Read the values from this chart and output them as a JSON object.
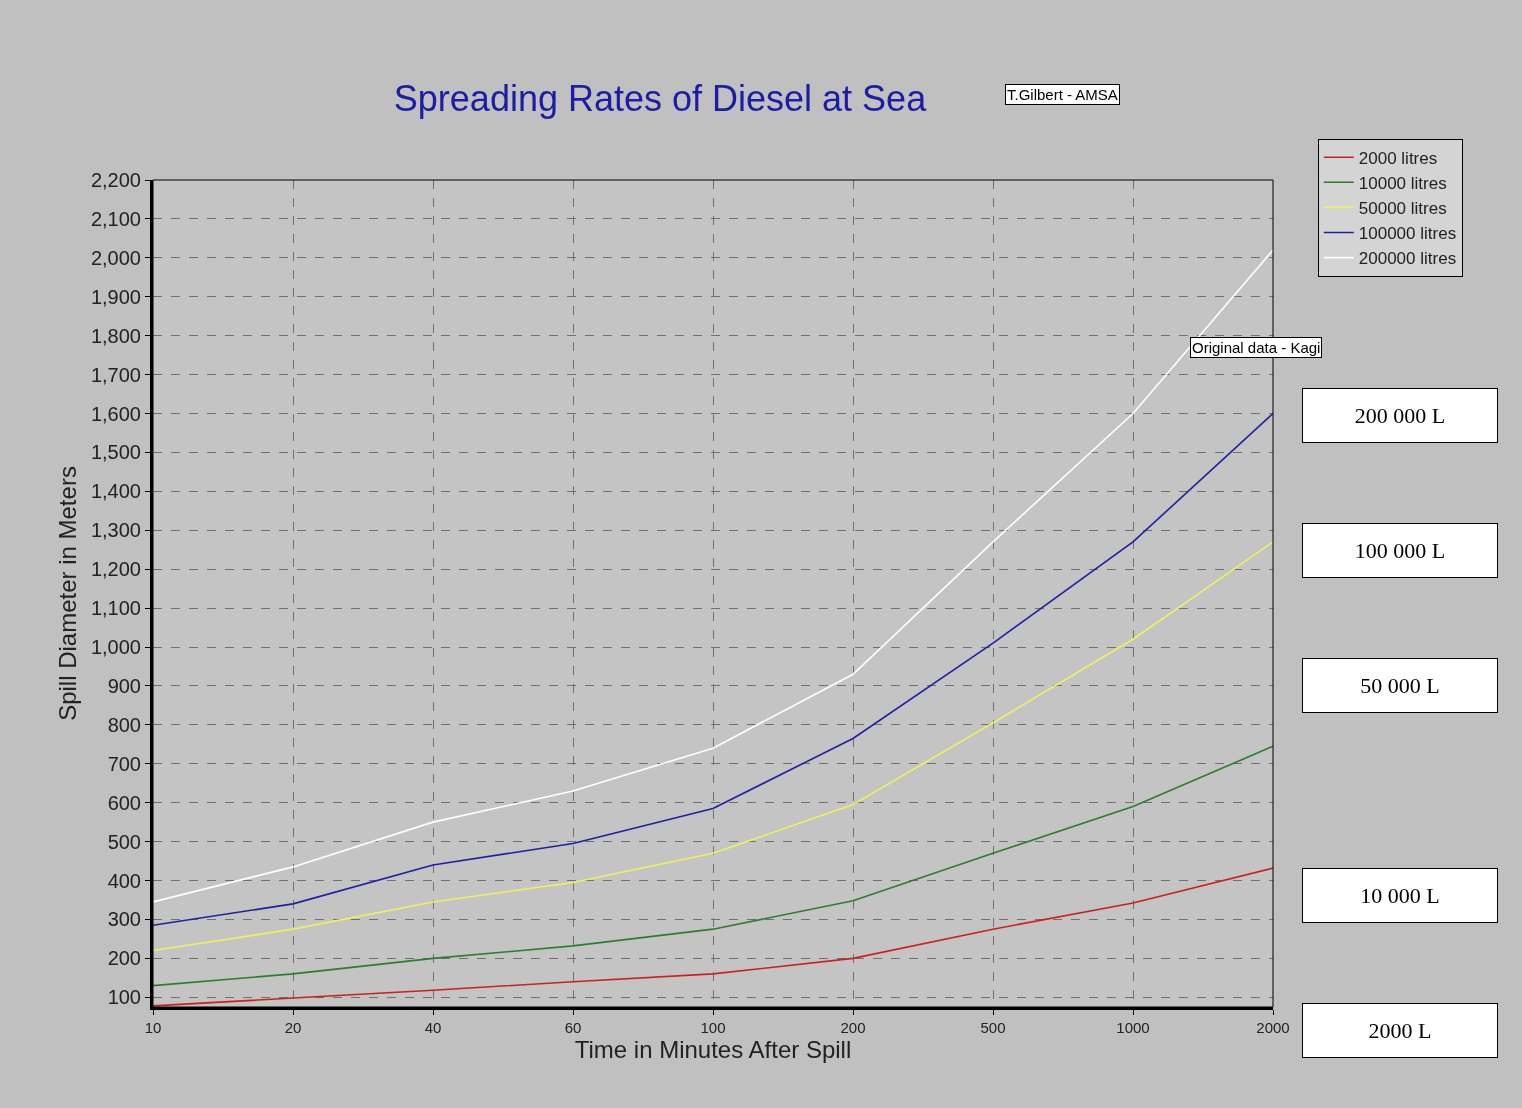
{
  "chart_data": {
    "type": "line",
    "title": "Spreading Rates of Diesel at Sea",
    "xlabel": "Time in Minutes After Spill",
    "ylabel": "Spill Diameter in Meters",
    "categories": [
      "10",
      "20",
      "40",
      "60",
      "100",
      "200",
      "500",
      "1000",
      "2000"
    ],
    "series": [
      {
        "name": "2000 litres",
        "color": "#cc2020",
        "values": [
          78,
          98,
          118,
          140,
          160,
          200,
          275,
          342,
          432
        ]
      },
      {
        "name": "10000 litres",
        "color": "#2e7d2e",
        "values": [
          130,
          160,
          200,
          232,
          275,
          348,
          470,
          590,
          745
        ]
      },
      {
        "name": "50000 litres",
        "color": "#f0f060",
        "values": [
          220,
          275,
          345,
          395,
          470,
          595,
          805,
          1020,
          1270
        ]
      },
      {
        "name": "100000 litres",
        "color": "#2020a0",
        "values": [
          285,
          340,
          440,
          495,
          585,
          765,
          1010,
          1270,
          1600
        ]
      },
      {
        "name": "200000 litres",
        "color": "#ffffff",
        "values": [
          345,
          435,
          550,
          630,
          740,
          930,
          1270,
          1600,
          2020
        ]
      }
    ],
    "ylim": [
      75,
      2200
    ],
    "yticks": [
      {
        "value": 100,
        "label": "100"
      },
      {
        "value": 200,
        "label": "200"
      },
      {
        "value": 300,
        "label": "300"
      },
      {
        "value": 400,
        "label": "400"
      },
      {
        "value": 500,
        "label": "500"
      },
      {
        "value": 600,
        "label": "600"
      },
      {
        "value": 700,
        "label": "700"
      },
      {
        "value": 800,
        "label": "800"
      },
      {
        "value": 900,
        "label": "900"
      },
      {
        "value": 1000,
        "label": "1,000"
      },
      {
        "value": 1100,
        "label": "1,100"
      },
      {
        "value": 1200,
        "label": "1,200"
      },
      {
        "value": 1300,
        "label": "1,300"
      },
      {
        "value": 1400,
        "label": "1,400"
      },
      {
        "value": 1500,
        "label": "1,500"
      },
      {
        "value": 1600,
        "label": "1,600"
      },
      {
        "value": 1700,
        "label": "1,700"
      },
      {
        "value": 1800,
        "label": "1,800"
      },
      {
        "value": 1900,
        "label": "1,900"
      },
      {
        "value": 2000,
        "label": "2,000"
      },
      {
        "value": 2100,
        "label": "2,100"
      },
      {
        "value": 2200,
        "label": "2,200"
      }
    ],
    "grid": true,
    "legend": "top right",
    "marker": "none",
    "line_style": "solid",
    "annotations": [
      "T.Gilbert - AMSA",
      "Original data - Kagi",
      "200 000 L",
      "100 000 L",
      "50 000 L",
      "10 000 L",
      "2000 L"
    ]
  }
}
